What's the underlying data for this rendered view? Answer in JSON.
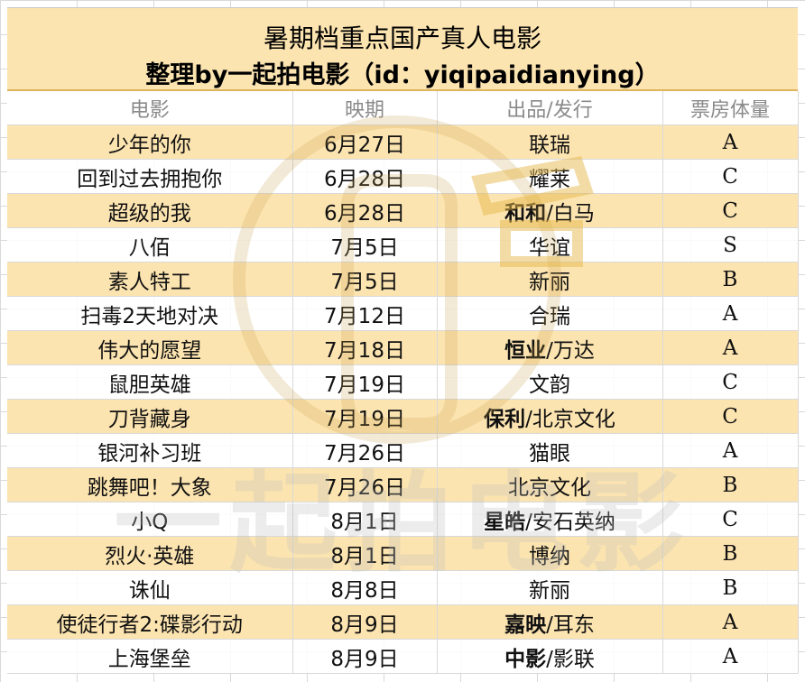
{
  "title": {
    "line1": "暑期档重点国产真人电影",
    "line2": "整理by一起拍电影（id：yiqipaidianying）"
  },
  "headers": [
    "电影",
    "映期",
    "出品/发行",
    "票房体量"
  ],
  "rows": [
    {
      "film": "少年的你",
      "date": "6月27日",
      "dist_bold": "",
      "dist_rest": "联瑞",
      "grade": "A",
      "highlight": true,
      "film_bold": false
    },
    {
      "film": "回到过去拥抱你",
      "date": "6月28日",
      "dist_bold": "",
      "dist_rest": "耀莱",
      "grade": "C",
      "highlight": false,
      "film_bold": false
    },
    {
      "film": "超级的我",
      "date": "6月28日",
      "dist_bold": "和和",
      "dist_rest": "/白马",
      "grade": "C",
      "highlight": true,
      "film_bold": false
    },
    {
      "film": "八佰",
      "date": "7月5日",
      "dist_bold": "",
      "dist_rest": "华谊",
      "grade": "S",
      "highlight": false,
      "film_bold": false
    },
    {
      "film": "素人特工",
      "date": "7月5日",
      "dist_bold": "",
      "dist_rest": "新丽",
      "grade": "B",
      "highlight": true,
      "film_bold": false
    },
    {
      "film": "扫毒2天地对决",
      "date": "7月12日",
      "dist_bold": "",
      "dist_rest": "合瑞",
      "grade": "A",
      "highlight": false,
      "film_bold": false
    },
    {
      "film": "伟大的愿望",
      "date": "7月18日",
      "dist_bold": "恒业",
      "dist_rest": "/万达",
      "grade": "A",
      "highlight": true,
      "film_bold": false
    },
    {
      "film": "鼠胆英雄",
      "date": "7月19日",
      "dist_bold": "",
      "dist_rest": "文韵",
      "grade": "C",
      "highlight": false,
      "film_bold": false
    },
    {
      "film": "刀背藏身",
      "date": "7月19日",
      "dist_bold": "保利",
      "dist_rest": "/北京文化",
      "grade": "C",
      "highlight": true,
      "film_bold": false
    },
    {
      "film": "银河补习班",
      "date": "7月26日",
      "dist_bold": "",
      "dist_rest": "猫眼",
      "grade": "A",
      "highlight": false,
      "film_bold": false
    },
    {
      "film": "跳舞吧！大象",
      "date": "7月26日",
      "dist_bold": "",
      "dist_rest": "北京文化",
      "grade": "B",
      "highlight": true,
      "film_bold": false
    },
    {
      "film": "小Q",
      "date": "8月1日",
      "dist_bold": "星皓",
      "dist_rest": "/安石英纳",
      "grade": "C",
      "highlight": false,
      "film_bold": false
    },
    {
      "film": "烈火·英雄",
      "date": "8月1日",
      "dist_bold": "",
      "dist_rest": "博纳",
      "grade": "B",
      "highlight": true,
      "film_bold": true
    },
    {
      "film": "诛仙",
      "date": "8月8日",
      "dist_bold": "",
      "dist_rest": "新丽",
      "grade": "B",
      "highlight": false,
      "film_bold": false
    },
    {
      "film": "使徒行者2:碟影行动",
      "date": "8月9日",
      "dist_bold": "嘉映",
      "dist_rest": "/耳东",
      "grade": "A",
      "highlight": true,
      "film_bold": true
    },
    {
      "film": "上海堡垒",
      "date": "8月9日",
      "dist_bold": "中影",
      "dist_rest": "/影联",
      "grade": "A",
      "highlight": false,
      "film_bold": false
    }
  ],
  "watermark": {
    "text": "一起拍电影"
  },
  "colors": {
    "highlight": "#fce4b0",
    "header_text": "#8a8a8a",
    "watermark": "#e6b84a"
  }
}
